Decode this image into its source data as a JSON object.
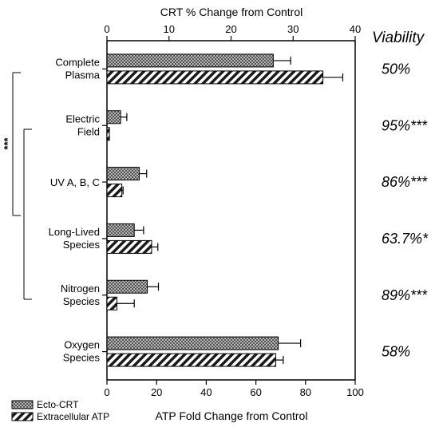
{
  "chart_data": {
    "type": "bar",
    "orientation": "horizontal",
    "top_axis": {
      "title": "CRT % Change from Control",
      "range": [
        0,
        40
      ],
      "ticks": [
        0,
        10,
        20,
        30,
        40
      ]
    },
    "bottom_axis": {
      "title": "ATP Fold Change from Control",
      "range": [
        0,
        100
      ],
      "ticks": [
        0,
        20,
        40,
        60,
        80,
        100
      ]
    },
    "categories": [
      {
        "line1": "Complete",
        "line2": "Plasma"
      },
      {
        "line1": "Electric",
        "line2": "Field"
      },
      {
        "line1": "UV A, B, C",
        "line2": ""
      },
      {
        "line1": "Long-Lived",
        "line2": "Species"
      },
      {
        "line1": "Nitrogen",
        "line2": "Species"
      },
      {
        "line1": "Oxygen",
        "line2": "Species"
      }
    ],
    "series": [
      {
        "name": "Ecto-CRT",
        "axis": "top",
        "pattern": "crosshatch",
        "values": [
          26.8,
          2.2,
          5.2,
          4.4,
          6.5,
          27.6
        ],
        "errors": [
          2.8,
          1.0,
          1.2,
          1.5,
          1.8,
          3.6
        ]
      },
      {
        "name": "Extracellular ATP",
        "axis": "bottom",
        "pattern": "diagonal",
        "values": [
          87,
          1,
          6,
          18,
          4,
          68
        ],
        "errors": [
          8,
          0,
          0.5,
          2.5,
          7,
          3
        ]
      }
    ],
    "viability": {
      "header": "Viability",
      "values": [
        "50%",
        "95%***",
        "86%***",
        "63.7%*",
        "89%***",
        "58%"
      ]
    },
    "significance_bracket": {
      "label": "***",
      "compare": [
        "Complete Plasma",
        "UV A, B, C"
      ]
    },
    "legend": {
      "placement": "bottom-left",
      "items": [
        "Ecto-CRT",
        "Extracellular ATP"
      ]
    }
  }
}
